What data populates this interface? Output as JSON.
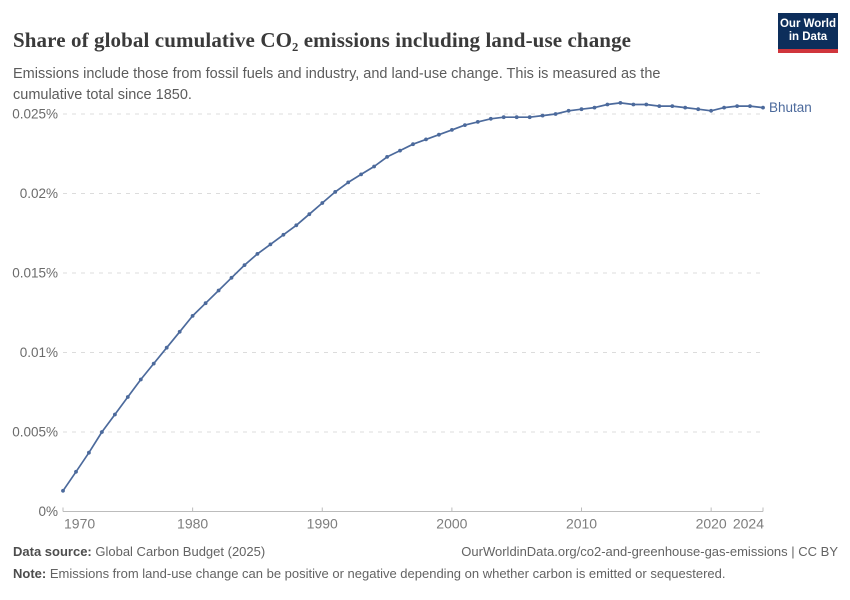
{
  "header": {
    "title": "Share of global cumulative CO₂ emissions including land-use change",
    "subtitle": "Emissions include those from fossil fuels and industry, and land-use change. This is measured as the cumulative total since 1850.",
    "logo": {
      "line1": "Our World",
      "line2": "in Data"
    }
  },
  "footer": {
    "source_label": "Data source:",
    "source_text": " Global Carbon Budget (2025)",
    "link_text": "OurWorldinData.org/co2-and-greenhouse-gas-emissions | CC BY",
    "note_label": "Note:",
    "note_text": " Emissions from land-use change can be positive or negative depending on whether carbon is emitted or sequestered."
  },
  "colors": {
    "line": "#4C6A9C",
    "entity_label": "#4C6A9C",
    "gridline": "#dcdcdc",
    "axis": "#bcbcbc",
    "y_tick_label": "#6b6b6b",
    "x_tick_label": "#7d7d7d",
    "logo_navy": "#0d2e5b",
    "logo_red": "#d0353c"
  },
  "chart_data": {
    "type": "line",
    "entity": "Bhutan",
    "title": "Share of global cumulative CO₂ emissions including land-use change",
    "xlabel": "",
    "ylabel": "",
    "xlim": [
      1970,
      2024
    ],
    "ylim": [
      0,
      0.0265
    ],
    "grid": "horizontal-dashed",
    "legend_position": "end-of-line-label",
    "x": [
      1970,
      1971,
      1972,
      1973,
      1974,
      1975,
      1976,
      1977,
      1978,
      1979,
      1980,
      1981,
      1982,
      1983,
      1984,
      1985,
      1986,
      1987,
      1988,
      1989,
      1990,
      1991,
      1992,
      1993,
      1994,
      1995,
      1996,
      1997,
      1998,
      1999,
      2000,
      2001,
      2002,
      2003,
      2004,
      2005,
      2006,
      2007,
      2008,
      2009,
      2010,
      2011,
      2012,
      2013,
      2014,
      2015,
      2016,
      2017,
      2018,
      2019,
      2020,
      2021,
      2022,
      2023,
      2024
    ],
    "series": [
      {
        "name": "Bhutan",
        "unit": "%",
        "values": [
          0.0013,
          0.0025,
          0.0037,
          0.005,
          0.0061,
          0.0072,
          0.0083,
          0.0093,
          0.0103,
          0.0113,
          0.0123,
          0.0131,
          0.0139,
          0.0147,
          0.0155,
          0.0162,
          0.0168,
          0.0174,
          0.018,
          0.0187,
          0.0194,
          0.0201,
          0.0207,
          0.0212,
          0.0217,
          0.0223,
          0.0227,
          0.0231,
          0.0234,
          0.0237,
          0.024,
          0.0243,
          0.0245,
          0.0247,
          0.0248,
          0.0248,
          0.0248,
          0.0249,
          0.025,
          0.0252,
          0.0253,
          0.0254,
          0.0256,
          0.0257,
          0.0256,
          0.0256,
          0.0255,
          0.0255,
          0.0254,
          0.0253,
          0.0252,
          0.0254,
          0.0255,
          0.0255,
          0.0254
        ]
      }
    ],
    "x_ticks": {
      "values": [
        1970,
        1980,
        1990,
        2000,
        2010,
        2020,
        2024
      ],
      "labels": [
        "1970",
        "1980",
        "1990",
        "2000",
        "2010",
        "2020",
        "2024"
      ]
    },
    "y_ticks": {
      "values": [
        0,
        0.005,
        0.01,
        0.015,
        0.02,
        0.025
      ],
      "labels": [
        "0%",
        "0.005%",
        "0.01%",
        "0.015%",
        "0.02%",
        "0.025%"
      ]
    }
  }
}
